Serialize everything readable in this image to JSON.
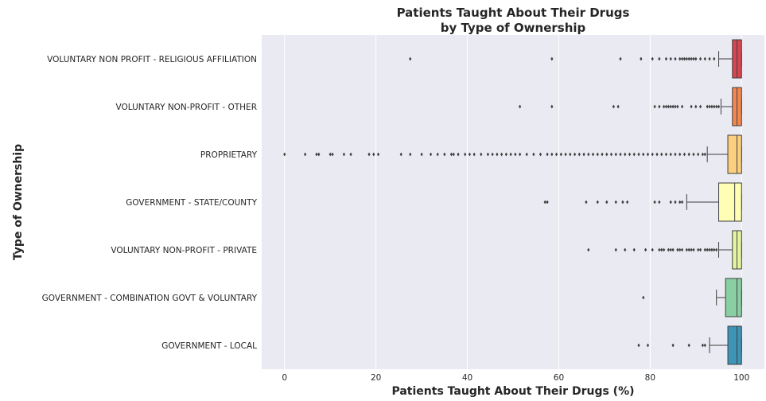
{
  "chart_data": {
    "type": "boxplot",
    "orientation": "horizontal",
    "title": [
      "Patients Taught About Their Drugs",
      "by Type of Ownership"
    ],
    "xlabel": "Patients Taught About Their Drugs (%)",
    "ylabel": "Type of Ownership",
    "xlim": [
      -5,
      105
    ],
    "xticks": [
      0,
      20,
      40,
      60,
      80,
      100
    ],
    "grid": true,
    "categories": [
      {
        "name": "VOLUNTARY NON PROFIT - RELIGIOUS AFFILIATION",
        "color": "#d9454f",
        "q1": 98,
        "median": 99,
        "q3": 100,
        "whisker_low": 95,
        "whisker_high": 100,
        "outliers": [
          27.5,
          58.5,
          73.5,
          78,
          80.5,
          82,
          83.5,
          84.5,
          85.5,
          86.5,
          87,
          87.5,
          88,
          88.5,
          89,
          89.5,
          90,
          91,
          92,
          93,
          94
        ]
      },
      {
        "name": "VOLUNTARY NON-PROFIT - OTHER",
        "color": "#f4874f",
        "q1": 98,
        "median": 99,
        "q3": 100,
        "whisker_low": 95.5,
        "whisker_high": 100,
        "outliers": [
          51.5,
          58.5,
          72,
          73,
          81,
          82,
          83,
          83.5,
          84,
          84.5,
          85,
          85.5,
          86,
          87,
          89,
          90,
          91,
          92.5,
          93,
          93.5,
          94,
          94.5,
          95
        ]
      },
      {
        "name": "PROPRIETARY",
        "color": "#fbcf7e",
        "q1": 97,
        "median": 99,
        "q3": 100,
        "whisker_low": 92.5,
        "whisker_high": 100,
        "outliers": [
          0,
          4.5,
          7,
          7.5,
          10,
          10.5,
          13,
          14.5,
          18.5,
          19.5,
          20.5,
          25.5,
          27.5,
          30,
          32,
          33.5,
          35,
          36.5,
          37,
          38,
          39.5,
          40.5,
          41.5,
          43,
          44.5,
          45.5,
          46.5,
          47.5,
          48.5,
          49.5,
          50.5,
          51.5,
          53,
          54.5,
          56,
          57.5,
          58.5,
          59.5,
          60.5,
          61.5,
          62.5,
          63.5,
          64.5,
          65.5,
          66.5,
          67.5,
          68.5,
          69.5,
          70.5,
          71.5,
          72.5,
          73.5,
          74.5,
          75.5,
          76.5,
          77.5,
          78.5,
          79.5,
          80.5,
          81.5,
          82.5,
          83.5,
          84.5,
          85.5,
          86.5,
          87.5,
          88.5,
          89.5,
          90.5,
          91.5,
          92
        ]
      },
      {
        "name": "GOVERNMENT - STATE/COUNTY",
        "color": "#fefeb4",
        "q1": 95,
        "median": 98.5,
        "q3": 100,
        "whisker_low": 88,
        "whisker_high": 100,
        "outliers": [
          57,
          57.5,
          66,
          68.5,
          70.5,
          72.5,
          74,
          75,
          81,
          82,
          84.5,
          85.5,
          86.5,
          87
        ]
      },
      {
        "name": "VOLUNTARY NON-PROFIT - PRIVATE",
        "color": "#e3f4a0",
        "q1": 98,
        "median": 99,
        "q3": 100,
        "whisker_low": 95,
        "whisker_high": 100,
        "outliers": [
          66.5,
          72.5,
          74.5,
          76.5,
          79,
          80.5,
          82,
          82.5,
          83,
          84,
          84.5,
          85,
          86,
          86.5,
          87,
          88,
          88.5,
          89,
          89.5,
          90.5,
          91,
          92,
          92.5,
          93,
          93.5,
          94,
          94.5
        ]
      },
      {
        "name": "GOVERNMENT - COMBINATION GOVT & VOLUNTARY",
        "color": "#8acfa3",
        "q1": 96.5,
        "median": 99,
        "q3": 100,
        "whisker_low": 94.5,
        "whisker_high": 100,
        "outliers": [
          78.5
        ]
      },
      {
        "name": "GOVERNMENT - LOCAL",
        "color": "#3d94b6",
        "q1": 97,
        "median": 99,
        "q3": 100,
        "whisker_low": 93,
        "whisker_high": 100,
        "outliers": [
          77.5,
          79.5,
          85,
          88.5,
          91.5,
          92
        ]
      }
    ]
  }
}
